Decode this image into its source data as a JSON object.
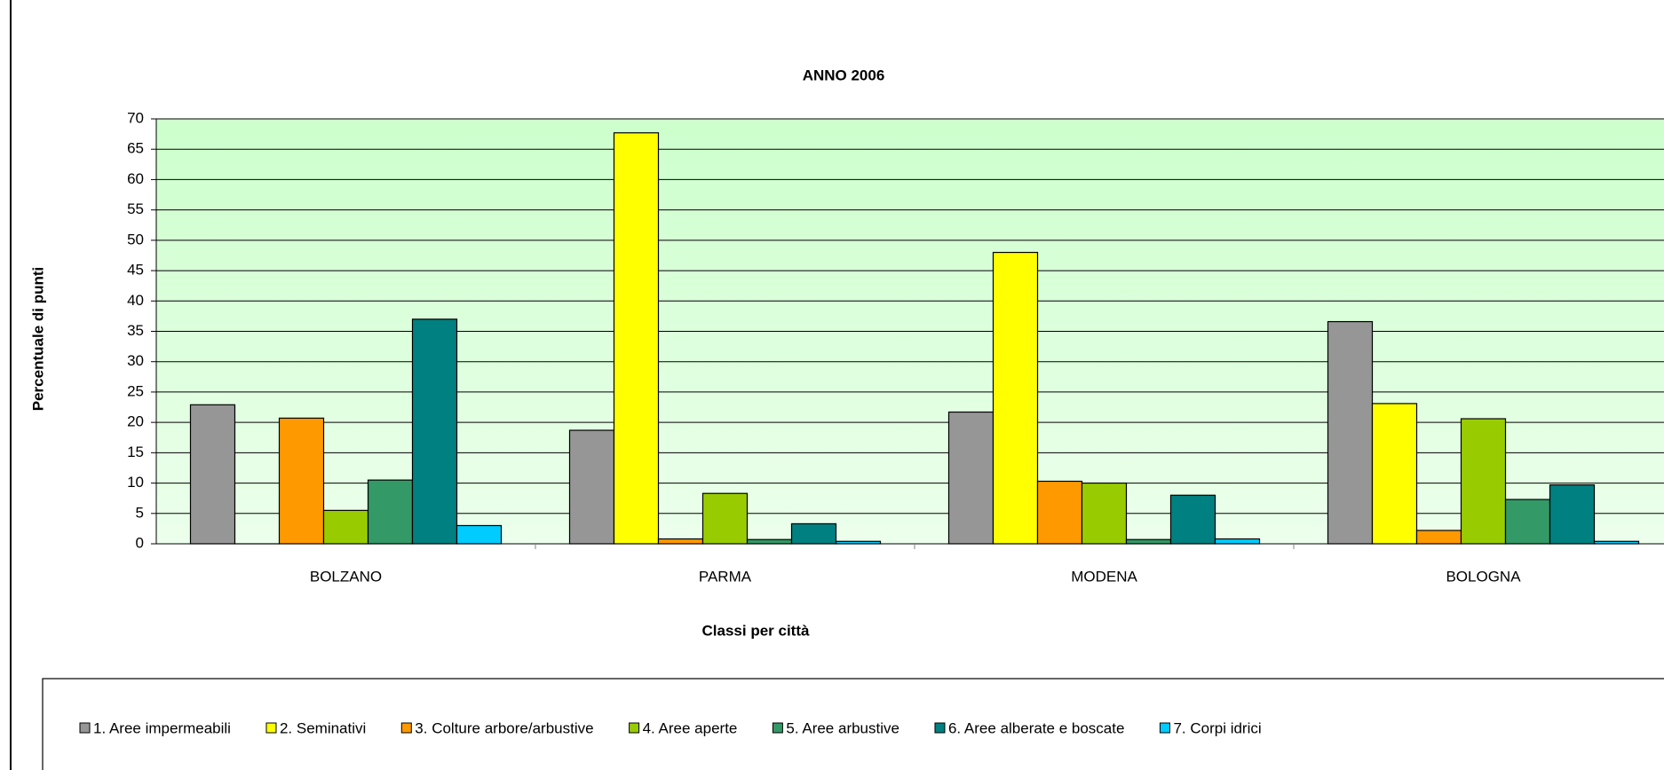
{
  "chart_data": {
    "type": "bar",
    "title": "ANNO 2006",
    "x_label": "Classi per città",
    "y_label": "Percentuale di punti",
    "categories": [
      "BOLZANO",
      "PARMA",
      "MODENA",
      "BOLOGNA"
    ],
    "series": [
      {
        "name": "1. Aree impermeabili",
        "color": "#969696",
        "values": [
          22.9,
          18.7,
          21.7,
          36.6
        ]
      },
      {
        "name": "2. Seminativi",
        "color": "#ffff00",
        "values": [
          0,
          67.7,
          48,
          23.1
        ]
      },
      {
        "name": "3. Colture arbore/arbustive",
        "color": "#ff9900",
        "values": [
          20.7,
          0.8,
          10.3,
          2.2
        ]
      },
      {
        "name": "4. Aree aperte",
        "color": "#99cc00",
        "values": [
          5.5,
          8.3,
          10,
          20.6
        ]
      },
      {
        "name": "5. Aree arbustive",
        "color": "#339966",
        "values": [
          10.5,
          0.7,
          0.7,
          7.3
        ]
      },
      {
        "name": "6. Aree alberate e boscate",
        "color": "#008080",
        "values": [
          37,
          3.3,
          8,
          9.7
        ]
      },
      {
        "name": "7. Corpi idrici",
        "color": "#00ccff",
        "values": [
          3,
          0.4,
          0.8,
          0.4
        ]
      }
    ],
    "ylim": [
      0,
      70
    ],
    "yticks": [
      0,
      5,
      10,
      15,
      20,
      25,
      30,
      35,
      40,
      45,
      50,
      55,
      60,
      65,
      70
    ],
    "grid": true,
    "legend": "bottom"
  }
}
